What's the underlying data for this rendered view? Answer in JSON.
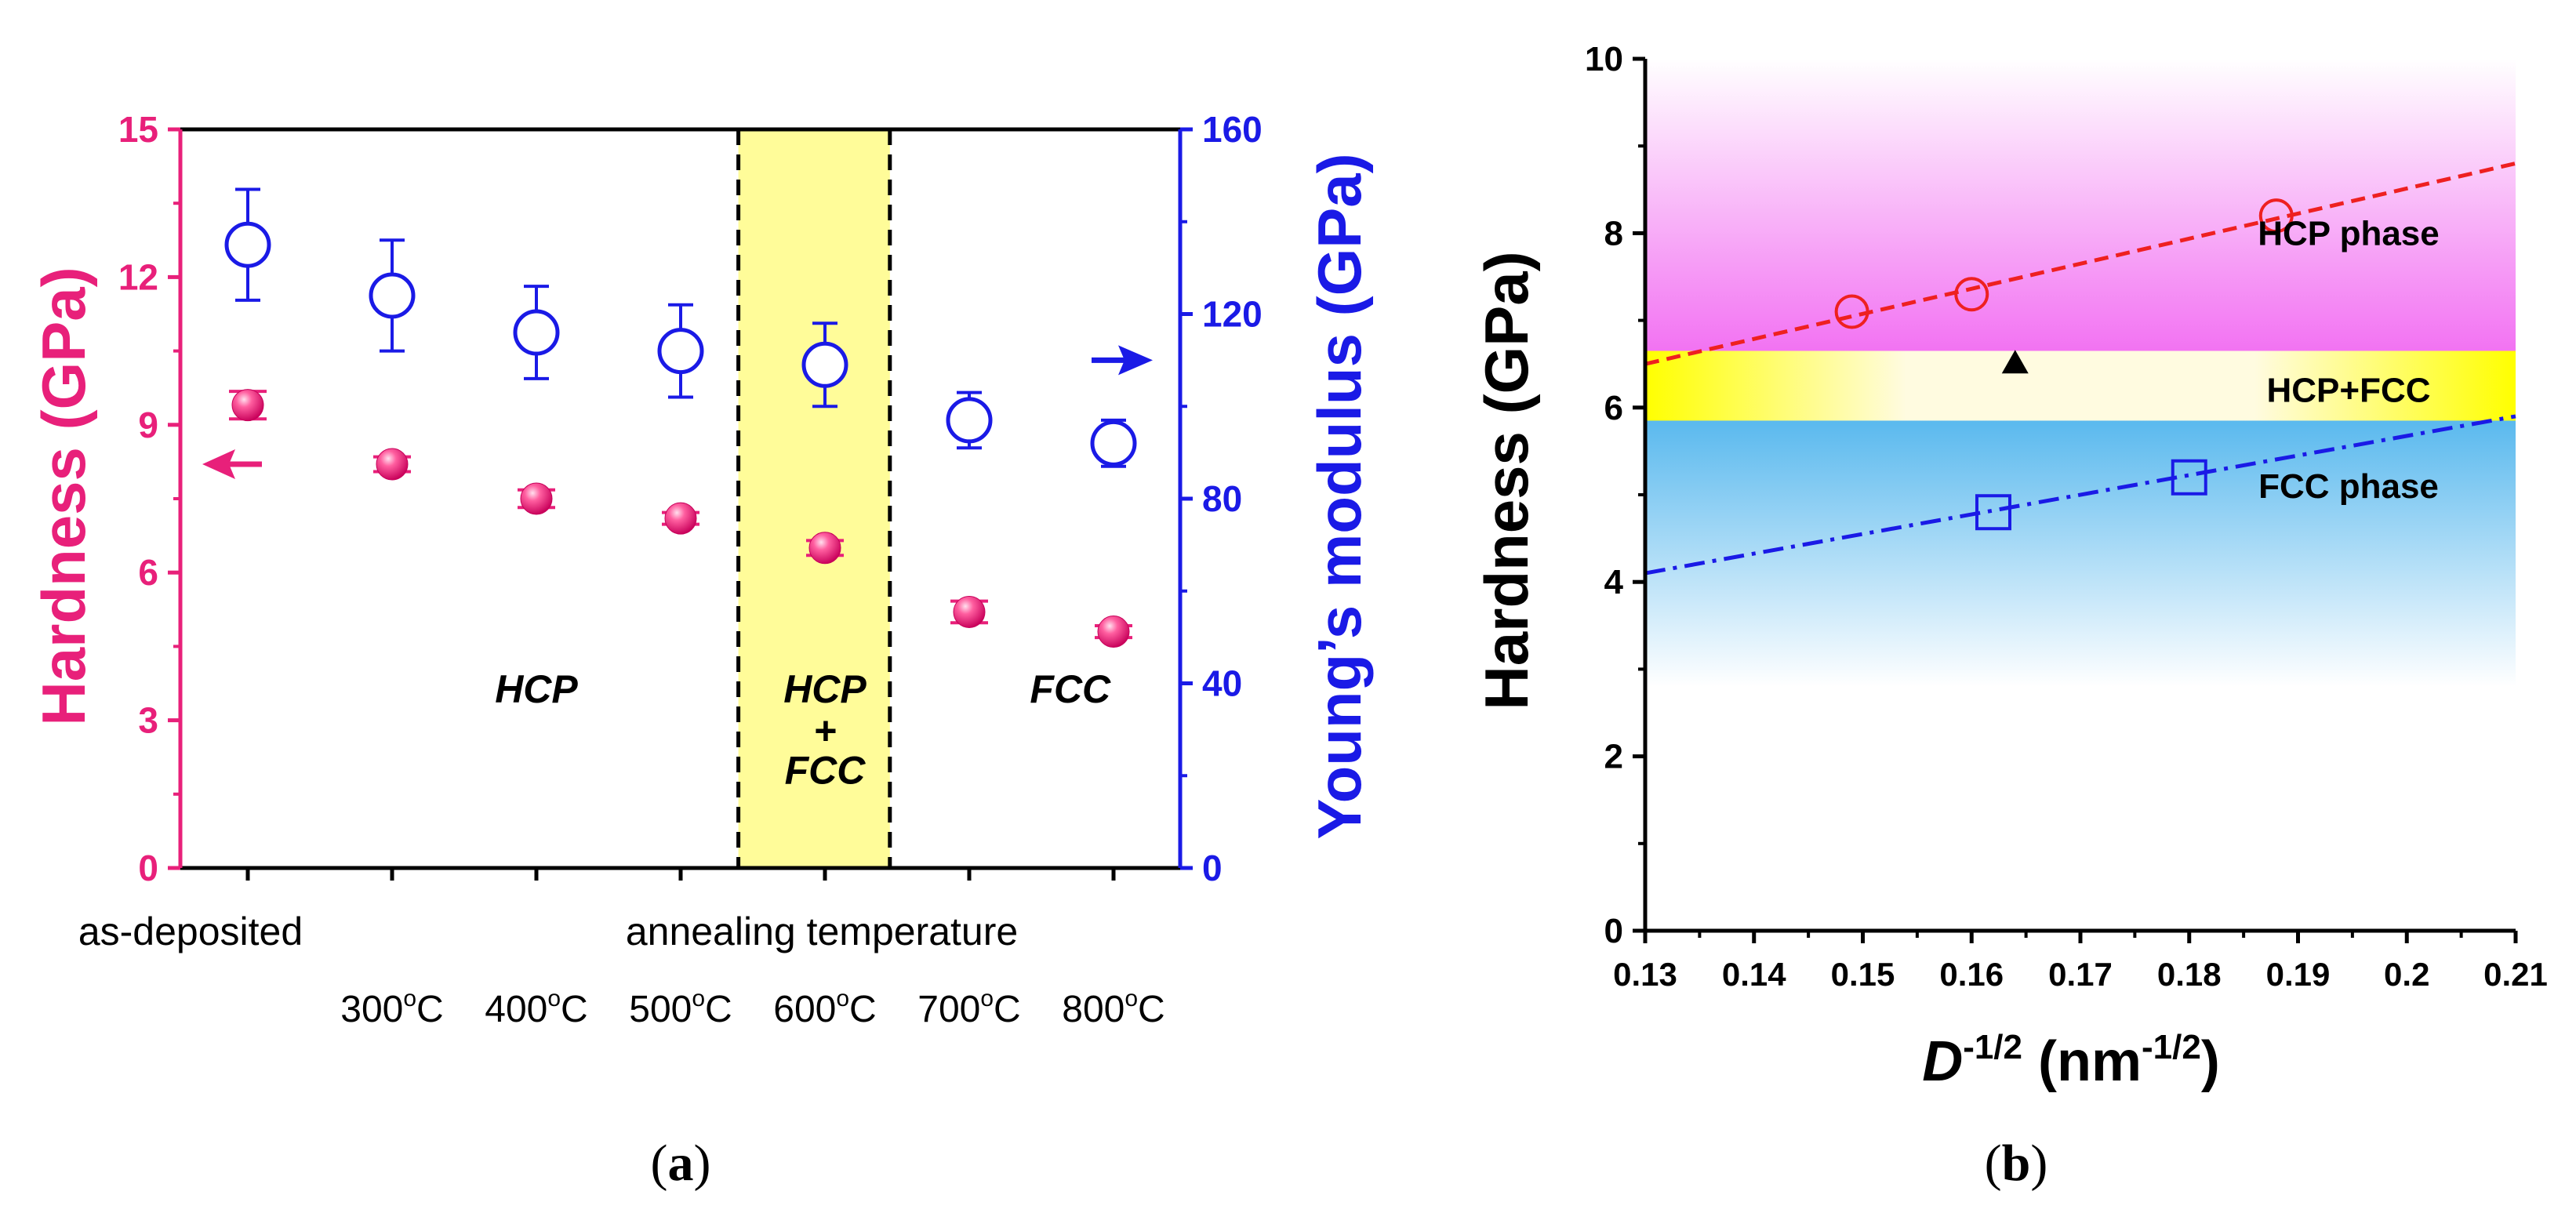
{
  "chart_data": [
    {
      "type": "scatter",
      "panel_label": "a",
      "x_categories": [
        "as-deposited",
        "300°C",
        "400°C",
        "500°C",
        "600°C",
        "700°C",
        "800°C"
      ],
      "xlabel_left": "as-deposited",
      "xlabel_right": "annealing temperature",
      "temp_ticks": [
        "300",
        "400",
        "500",
        "600",
        "700",
        "800"
      ],
      "degree_mark": "o",
      "temp_unit": "C",
      "left_axis": {
        "label": "Hardness (GPa)",
        "ylim": [
          0,
          15
        ],
        "ticks": [
          0,
          3,
          6,
          9,
          12,
          15
        ],
        "color": "#e8207a"
      },
      "right_axis": {
        "label": "Young’s modulus (GPa)",
        "ylim": [
          0,
          160
        ],
        "ticks": [
          0,
          40,
          80,
          120,
          160
        ],
        "color": "#1a1ae6"
      },
      "series": [
        {
          "name": "Hardness",
          "axis": "left",
          "marker": "filled-circle",
          "color": "#e8207a",
          "values": [
            9.4,
            8.2,
            7.5,
            7.1,
            6.5,
            5.2,
            4.8
          ],
          "errors": [
            0.28,
            0.15,
            0.18,
            0.12,
            0.15,
            0.22,
            0.12
          ]
        },
        {
          "name": "Young's modulus",
          "axis": "right",
          "marker": "open-circle",
          "color": "#1a1ae6",
          "values": [
            135,
            124,
            116,
            112,
            109,
            97,
            92
          ],
          "errors": [
            12,
            12,
            10,
            10,
            9,
            6,
            5
          ]
        }
      ],
      "phase_labels": [
        {
          "text": "HCP",
          "at_category": 2.0
        },
        {
          "text": "HCP",
          "at_category": 4.0
        },
        {
          "text": "+",
          "at_category": 4.0
        },
        {
          "text": "FCC",
          "at_category": 4.0
        },
        {
          "text": "FCC",
          "at_category": 5.7
        }
      ],
      "highlight_region": {
        "from_category": 3.4,
        "to_category": 4.45,
        "color": "#fffc99"
      },
      "arrows": [
        {
          "direction": "left",
          "points_to": "left axis",
          "color": "#e8207a"
        },
        {
          "direction": "right",
          "points_to": "right axis",
          "color": "#1a1ae6"
        }
      ]
    },
    {
      "type": "scatter",
      "panel_label": "b",
      "xlabel_symbol": "D",
      "xlabel_exp": "-1/2",
      "xlabel_unit": " (nm",
      "xlabel_unit_exp": "-1/2",
      "xlabel_close": ")",
      "ylabel": "Hardness (GPa)",
      "xlim": [
        0.13,
        0.21
      ],
      "ylim": [
        0,
        10
      ],
      "x_ticks": [
        "0.13",
        "0.14",
        "0.15",
        "0.16",
        "0.17",
        "0.18",
        "0.19",
        "0.2",
        "0.21"
      ],
      "y_ticks": [
        "0",
        "2",
        "4",
        "6",
        "8",
        "10"
      ],
      "series": [
        {
          "name": "HCP",
          "marker": "open-circle",
          "color": "#ee2020",
          "x": [
            0.149,
            0.16,
            0.188
          ],
          "y": [
            7.1,
            7.3,
            8.2
          ]
        },
        {
          "name": "FCC",
          "marker": "open-square",
          "color": "#1a1ae6",
          "x": [
            0.162,
            0.18
          ],
          "y": [
            4.8,
            5.2
          ]
        },
        {
          "name": "HCP+FCC",
          "marker": "filled-triangle",
          "color": "#000000",
          "x": [
            0.164
          ],
          "y": [
            6.5
          ]
        }
      ],
      "fit_lines": [
        {
          "name": "HCP fit",
          "style": "dashed",
          "color": "#ee2020",
          "x": [
            0.13,
            0.21
          ],
          "y": [
            6.5,
            8.8
          ]
        },
        {
          "name": "FCC fit",
          "style": "dash-dot",
          "color": "#1a1ae6",
          "x": [
            0.13,
            0.21
          ],
          "y": [
            4.1,
            5.9
          ]
        }
      ],
      "bands": [
        {
          "label": "HCP phase",
          "y_from": 6.65,
          "y_to": 10.0,
          "color": "#ee44ee"
        },
        {
          "label": "HCP+FCC",
          "y_from": 5.85,
          "y_to": 6.65,
          "color": "#ffff00"
        },
        {
          "label": "FCC phase",
          "y_from": 2.8,
          "y_to": 5.85,
          "color": "#5ab9ee"
        }
      ]
    }
  ]
}
